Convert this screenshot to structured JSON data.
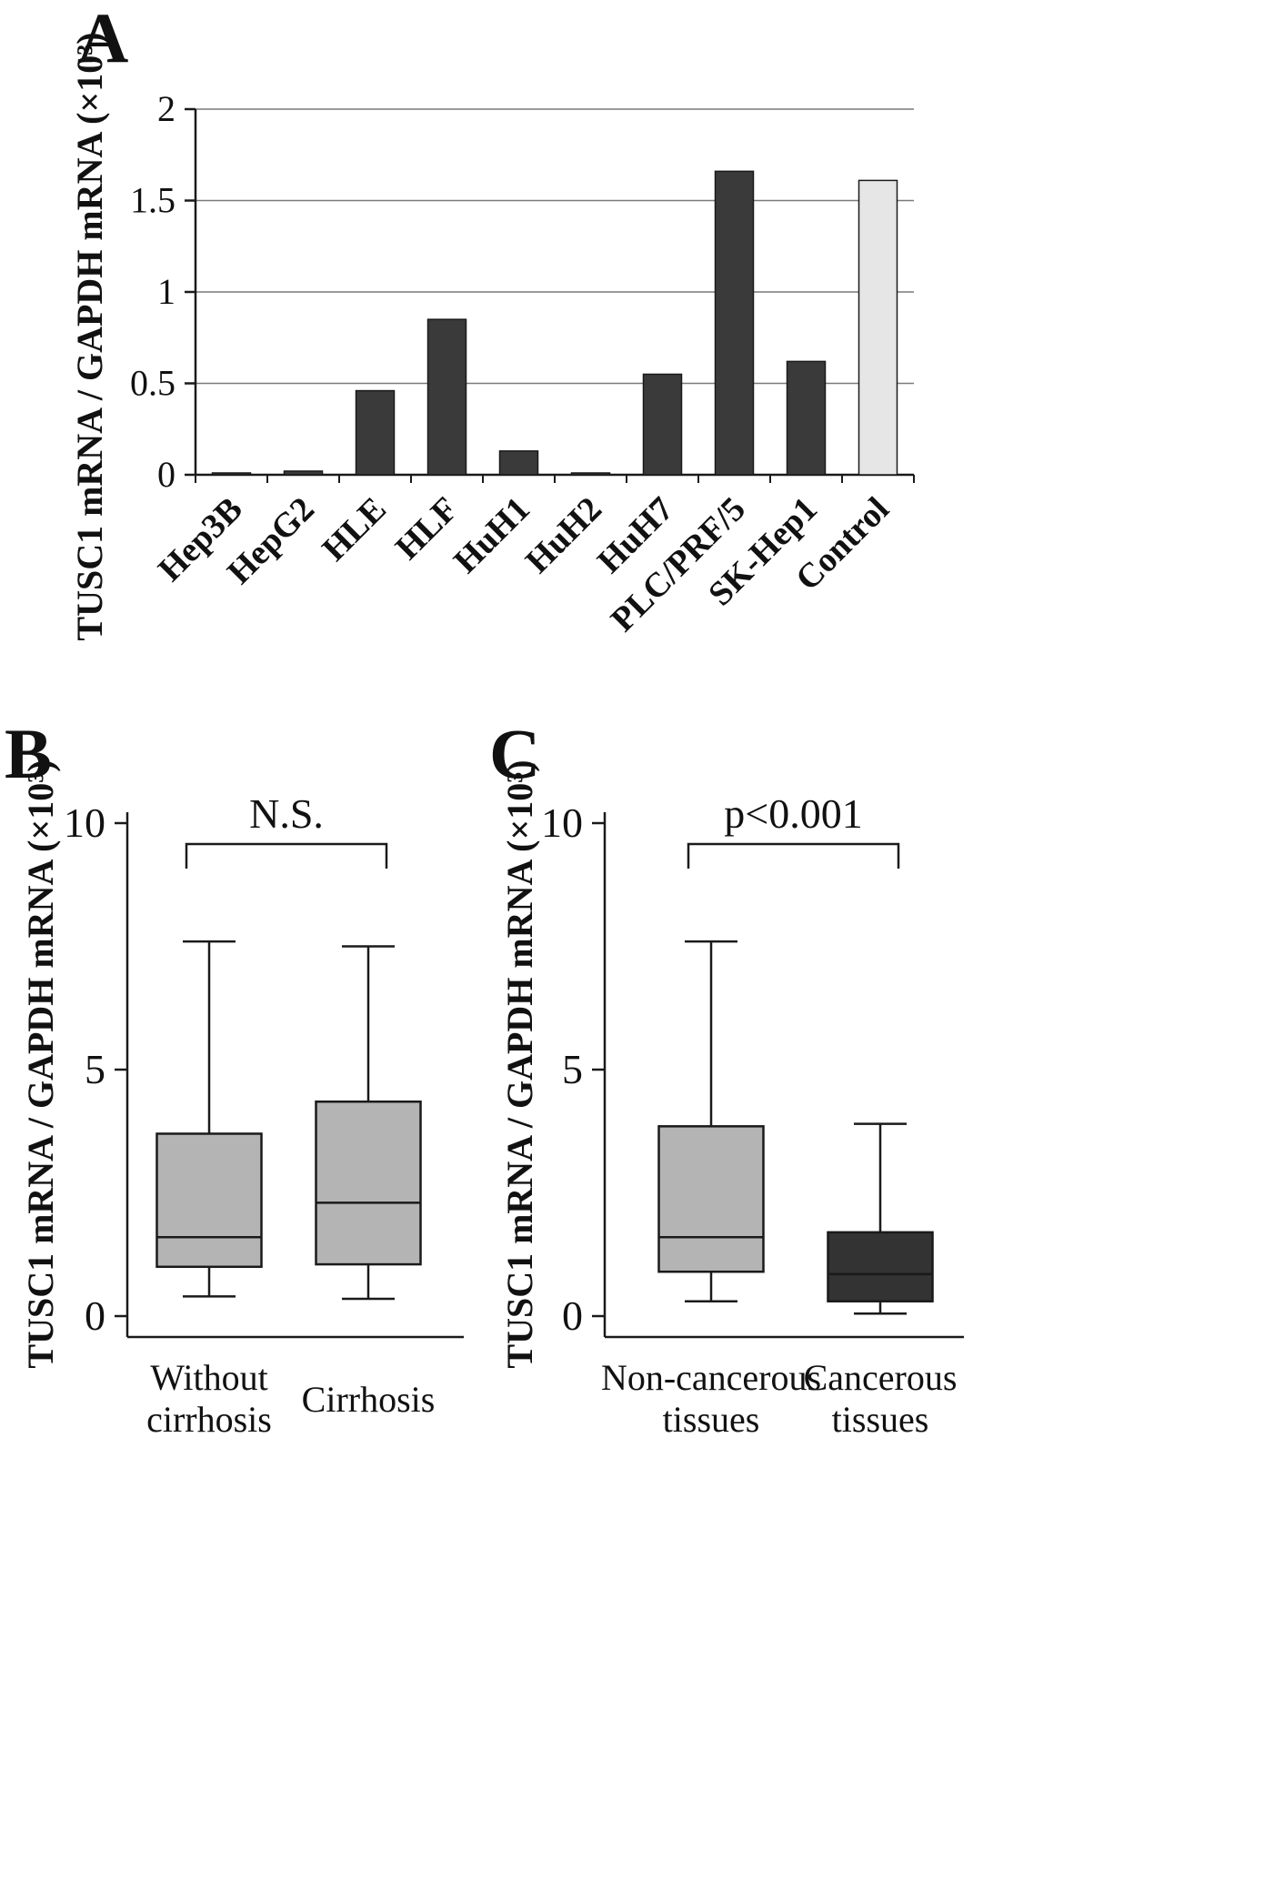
{
  "figure": {
    "panel_labels": [
      "A",
      "B",
      "C"
    ]
  },
  "colors": {
    "bar_dark": "#3a3a3a",
    "bar_control": "#e6e6e6",
    "box_gray": "#b4b4b4",
    "box_dark": "#333333",
    "axis": "#1a1a1a",
    "grid": "#7a7a7a"
  },
  "chart_data": [
    {
      "type": "bar",
      "panel": "A",
      "ylabel": "TUSC1 mRNA / GAPDH mRNA (×10³)",
      "ylim": [
        0,
        2
      ],
      "yticks": [
        0,
        0.5,
        1,
        1.5,
        2
      ],
      "grid": true,
      "categories": [
        "Hep3B",
        "HepG2",
        "HLE",
        "HLF",
        "HuH1",
        "HuH2",
        "HuH7",
        "PLC/PRF/5",
        "SK-Hep1",
        "Control"
      ],
      "values": [
        0.01,
        0.02,
        0.46,
        0.85,
        0.13,
        0.01,
        0.55,
        1.66,
        0.62,
        1.61
      ],
      "highlight_category": "Control"
    },
    {
      "type": "boxplot",
      "panel": "B",
      "annotation": "N.S.",
      "ylabel": "TUSC1 mRNA / GAPDH mRNA (×10³)",
      "ylim": [
        0,
        10
      ],
      "yticks": [
        0,
        5,
        10
      ],
      "categories": [
        "Without\ncirrhosis",
        "Cirrhosis"
      ],
      "series": [
        {
          "name": "Without cirrhosis",
          "min": 0.4,
          "q1": 1.0,
          "median": 1.6,
          "q3": 3.7,
          "max": 7.6,
          "color": "#b4b4b4"
        },
        {
          "name": "Cirrhosis",
          "min": 0.35,
          "q1": 1.05,
          "median": 2.3,
          "q3": 4.35,
          "max": 7.5,
          "color": "#b4b4b4"
        }
      ]
    },
    {
      "type": "boxplot",
      "panel": "C",
      "annotation": "p<0.001",
      "ylabel": "TUSC1 mRNA / GAPDH mRNA (×10³)",
      "ylim": [
        0,
        10
      ],
      "yticks": [
        0,
        5,
        10
      ],
      "categories": [
        "Non-cancerous\ntissues",
        "Cancerous\ntissues"
      ],
      "series": [
        {
          "name": "Non-cancerous tissues",
          "min": 0.3,
          "q1": 0.9,
          "median": 1.6,
          "q3": 3.85,
          "max": 7.6,
          "color": "#b4b4b4"
        },
        {
          "name": "Cancerous tissues",
          "min": 0.05,
          "q1": 0.3,
          "median": 0.85,
          "q3": 1.7,
          "max": 3.9,
          "color": "#333333"
        }
      ]
    }
  ]
}
